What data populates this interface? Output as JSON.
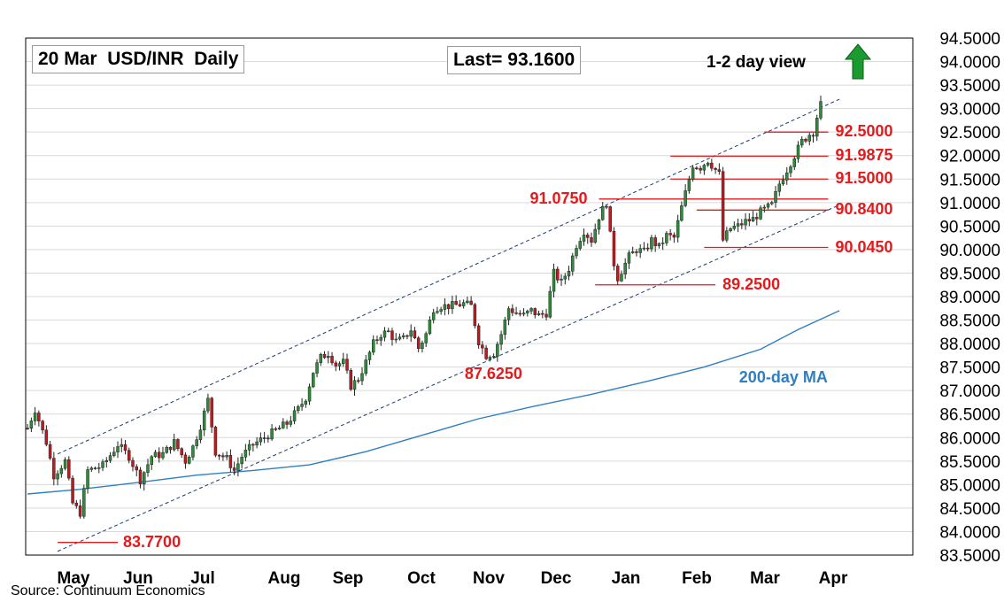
{
  "chart_data": {
    "type": "candlestick",
    "title": "20 Mar  USD/INR  Daily",
    "last_label": "Last= 93.1600",
    "view": {
      "label": "1-2 day view",
      "direction": "up",
      "color": "#1a9a2f"
    },
    "source": "Source: Continuum Economics",
    "y_axis": {
      "min": 83.5,
      "max": 94.5,
      "ticks": [
        "94.5000",
        "94.0000",
        "93.5000",
        "93.0000",
        "92.5000",
        "92.0000",
        "91.5000",
        "91.0000",
        "90.5000",
        "90.0000",
        "89.5000",
        "89.0000",
        "88.5000",
        "88.0000",
        "87.5000",
        "87.0000",
        "86.5000",
        "86.0000",
        "85.5000",
        "85.0000",
        "84.5000",
        "84.0000",
        "83.5000"
      ]
    },
    "x_axis": {
      "months": [
        "May",
        "Jun",
        "Jul",
        "Aug",
        "Sep",
        "Oct",
        "Nov",
        "Dec",
        "Jan",
        "Feb",
        "Mar",
        "Apr"
      ]
    },
    "grid": true,
    "colors": {
      "up": "#2e8b3a",
      "down": "#c0181f",
      "ma": "#2f7fc1",
      "levels": "#e41a1c",
      "channel": "#1f3b73"
    },
    "moving_average": {
      "name": "200-day MA",
      "points": [
        [
          0,
          84.8
        ],
        [
          14,
          84.9
        ],
        [
          30,
          85.05
        ],
        [
          45,
          85.2
        ],
        [
          60,
          85.3
        ],
        [
          75,
          85.42
        ],
        [
          90,
          85.7
        ],
        [
          105,
          86.05
        ],
        [
          120,
          86.4
        ],
        [
          135,
          86.67
        ],
        [
          150,
          86.92
        ],
        [
          165,
          87.2
        ],
        [
          180,
          87.5
        ],
        [
          195,
          87.88
        ],
        [
          205,
          88.3
        ],
        [
          216,
          88.7
        ]
      ]
    },
    "channel": {
      "upper": [
        [
          8,
          85.65
        ],
        [
          216,
          93.2
        ]
      ],
      "lower": [
        [
          8,
          83.58
        ],
        [
          216,
          90.95
        ]
      ]
    },
    "levels": [
      {
        "value": 92.5,
        "label": "92.5000",
        "x0": 196,
        "x1": 213
      },
      {
        "value": 91.9875,
        "label": "91.9875",
        "x0": 171,
        "x1": 213
      },
      {
        "value": 91.5,
        "label": "91.5000",
        "x0": 171,
        "x1": 213
      },
      {
        "value": 91.075,
        "label": "91.0750",
        "x0": 152,
        "x1": 213
      },
      {
        "value": 90.84,
        "label": "90.8400",
        "x0": 178,
        "x1": 213
      },
      {
        "value": 90.045,
        "label": "90.0450",
        "x0": 180,
        "x1": 213
      },
      {
        "value": 89.25,
        "label": "89.2500",
        "x0": 151,
        "x1": 183
      },
      {
        "value": 83.77,
        "label": "83.7700",
        "x0": 8,
        "x1": 24
      }
    ],
    "annotations": [
      {
        "text": "87.6250",
        "value": 87.625,
        "x": 121
      },
      {
        "text": "200-day MA",
        "value": 87.55,
        "x": 194
      }
    ],
    "anchors": [
      [
        0,
        86.2
      ],
      [
        2,
        86.6
      ],
      [
        5,
        85.9
      ],
      [
        7,
        85.2
      ],
      [
        10,
        85.5
      ],
      [
        12,
        84.6
      ],
      [
        14,
        84.4
      ],
      [
        16,
        85.3
      ],
      [
        20,
        85.4
      ],
      [
        24,
        85.85
      ],
      [
        27,
        85.6
      ],
      [
        30,
        85.1
      ],
      [
        33,
        85.6
      ],
      [
        36,
        85.65
      ],
      [
        39,
        85.9
      ],
      [
        42,
        85.5
      ],
      [
        44,
        85.8
      ],
      [
        46,
        86.25
      ],
      [
        48,
        86.8
      ],
      [
        50,
        85.7
      ],
      [
        53,
        85.55
      ],
      [
        55,
        85.3
      ],
      [
        57,
        85.6
      ],
      [
        60,
        85.85
      ],
      [
        63,
        86.0
      ],
      [
        66,
        86.15
      ],
      [
        69,
        86.3
      ],
      [
        72,
        86.6
      ],
      [
        74,
        86.85
      ],
      [
        76,
        87.4
      ],
      [
        78,
        87.7
      ],
      [
        80,
        87.8
      ],
      [
        82,
        87.55
      ],
      [
        84,
        87.6
      ],
      [
        86,
        87.1
      ],
      [
        88,
        87.25
      ],
      [
        90,
        87.6
      ],
      [
        92,
        88.0
      ],
      [
        94,
        88.2
      ],
      [
        96,
        88.25
      ],
      [
        98,
        88.05
      ],
      [
        100,
        88.1
      ],
      [
        102,
        88.3
      ],
      [
        104,
        87.9
      ],
      [
        106,
        88.2
      ],
      [
        108,
        88.75
      ],
      [
        110,
        88.8
      ],
      [
        112,
        88.8
      ],
      [
        114,
        88.82
      ],
      [
        116,
        88.85
      ],
      [
        118,
        88.8
      ],
      [
        120,
        88.05
      ],
      [
        122,
        87.75
      ],
      [
        124,
        87.8
      ],
      [
        126,
        88.2
      ],
      [
        128,
        88.75
      ],
      [
        130,
        88.65
      ],
      [
        132,
        88.6
      ],
      [
        134,
        88.7
      ],
      [
        136,
        88.6
      ],
      [
        138,
        88.65
      ],
      [
        140,
        89.5
      ],
      [
        142,
        89.3
      ],
      [
        144,
        89.6
      ],
      [
        146,
        90.1
      ],
      [
        148,
        90.4
      ],
      [
        150,
        90.2
      ],
      [
        152,
        90.7
      ],
      [
        154,
        91.0
      ],
      [
        155,
        90.3
      ],
      [
        156,
        89.7
      ],
      [
        157,
        89.4
      ],
      [
        158,
        89.55
      ],
      [
        160,
        89.85
      ],
      [
        162,
        90.0
      ],
      [
        164,
        89.95
      ],
      [
        166,
        90.2
      ],
      [
        168,
        90.05
      ],
      [
        170,
        90.3
      ],
      [
        172,
        90.25
      ],
      [
        174,
        90.9
      ],
      [
        176,
        91.5
      ],
      [
        177,
        91.8
      ],
      [
        179,
        91.75
      ],
      [
        181,
        91.9
      ],
      [
        183,
        91.7
      ],
      [
        184,
        91.6
      ],
      [
        185,
        90.2
      ],
      [
        187,
        90.45
      ],
      [
        189,
        90.5
      ],
      [
        191,
        90.6
      ],
      [
        193,
        90.65
      ],
      [
        195,
        90.8
      ],
      [
        197,
        90.9
      ],
      [
        198,
        90.95
      ],
      [
        200,
        91.4
      ],
      [
        202,
        91.7
      ],
      [
        204,
        92.0
      ],
      [
        206,
        92.3
      ],
      [
        208,
        92.45
      ],
      [
        209,
        92.5
      ],
      [
        211,
        93.15
      ]
    ]
  }
}
